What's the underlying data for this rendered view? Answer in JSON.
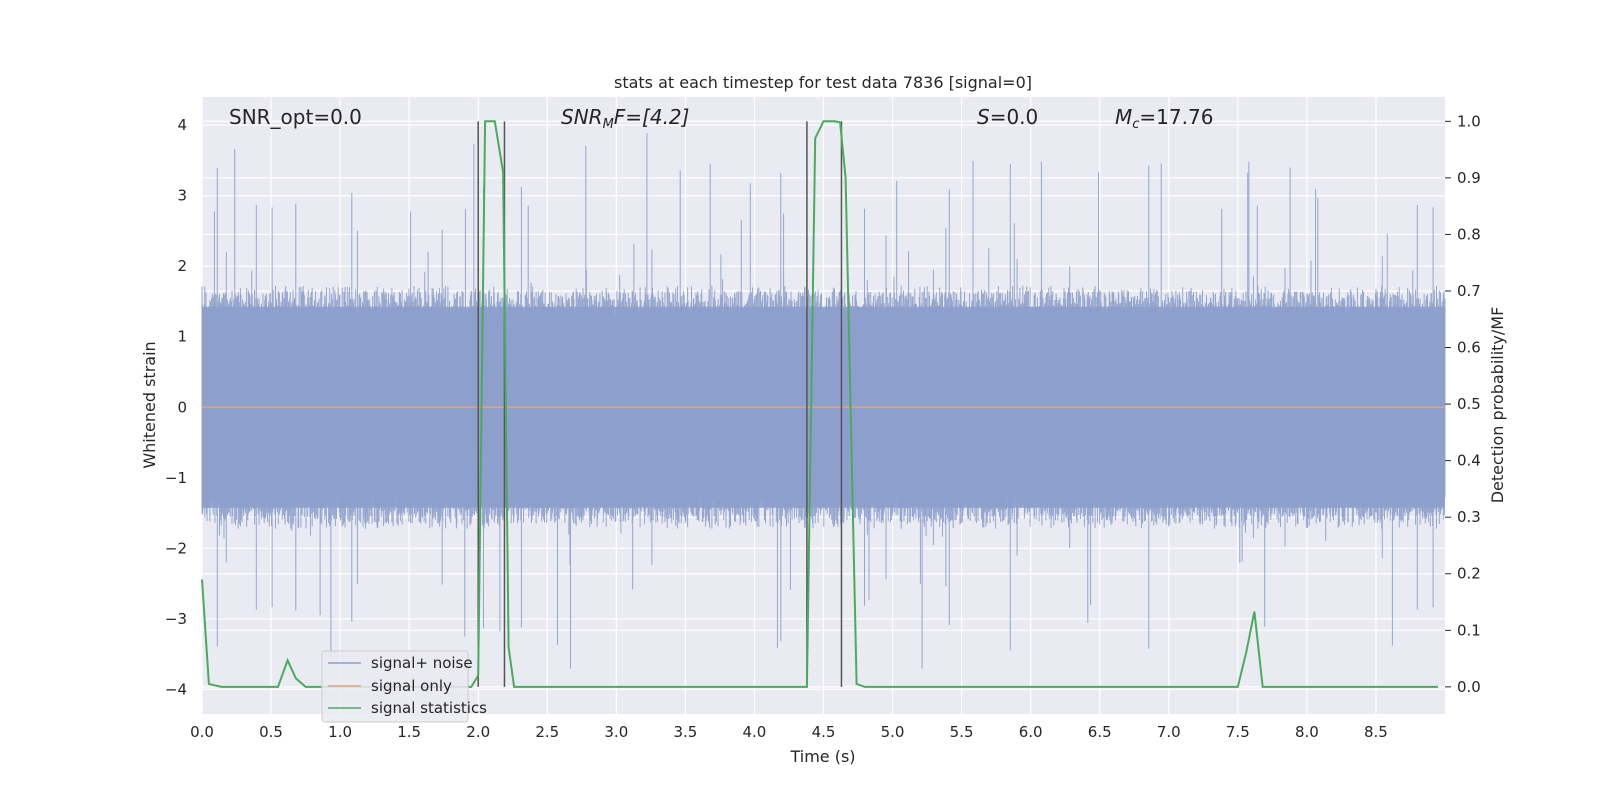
{
  "chart_data": {
    "type": "line",
    "title": "stats at each timestep for test data 7836 [signal=0]",
    "xlabel": "Time (s)",
    "ylabel": "Whitened strain",
    "ylabel_right": "Detection probability/MF",
    "xlim": [
      0.0,
      9.0
    ],
    "ylim": [
      -4.35,
      4.4
    ],
    "ylim_right": [
      -0.048,
      1.043
    ],
    "xticks": [
      0.0,
      0.5,
      1.0,
      1.5,
      2.0,
      2.5,
      3.0,
      3.5,
      4.0,
      4.5,
      5.0,
      5.5,
      6.0,
      6.5,
      7.0,
      7.5,
      8.0,
      8.5
    ],
    "xtick_labels": [
      "0.0",
      "0.5",
      "1.0",
      "1.5",
      "2.0",
      "2.5",
      "3.0",
      "3.5",
      "4.0",
      "4.5",
      "5.0",
      "5.5",
      "6.0",
      "6.5",
      "7.0",
      "7.5",
      "8.0",
      "8.5"
    ],
    "yticks": [
      4,
      3,
      2,
      1,
      0,
      -1,
      -2,
      -3,
      -4
    ],
    "ytick_labels": [
      "4",
      "3",
      "2",
      "1",
      "0",
      "−1",
      "−2",
      "−3",
      "−4"
    ],
    "yticks_right": [
      1.0,
      0.9,
      0.8,
      0.7,
      0.6,
      0.5,
      0.4,
      0.3,
      0.2,
      0.1,
      0.0
    ],
    "ytick_labels_right": [
      "1.0",
      "0.9",
      "0.8",
      "0.7",
      "0.6",
      "0.5",
      "0.4",
      "0.3",
      "0.2",
      "0.1",
      "0.0"
    ],
    "grid": true,
    "legend_placement": "lower left",
    "annotations": {
      "snr_opt": "SNR_opt=0.0",
      "snr_mf_main": "SNR",
      "snr_mf_sub": "M",
      "snr_mf_rest": "F=[4.2]",
      "s_main": "S",
      "s_rest": "=0.0",
      "mc_main": "M",
      "mc_sub": "c",
      "mc_rest": "=17.76"
    },
    "series": [
      {
        "name": "signal+ noise",
        "color": "#8c9fcb",
        "note_values": "noise-dominated whitened strain, roughly within ±1.5 with spikes to ±3.5",
        "envelope": {
          "core": 1.5,
          "peak": 3.5
        }
      },
      {
        "name": "signal only",
        "color": "#e0a27b",
        "x": [
          0.0,
          9.0
        ],
        "y": [
          0.0,
          0.0
        ]
      },
      {
        "name": "signal statistics",
        "color": "#4caa5d",
        "axis": "right",
        "x": [
          0.0,
          0.05,
          0.14,
          0.5,
          0.55,
          0.62,
          0.68,
          0.75,
          1.9,
          1.95,
          2.0,
          2.05,
          2.12,
          2.18,
          2.22,
          2.26,
          4.38,
          4.44,
          4.5,
          4.58,
          4.62,
          4.66,
          4.74,
          4.8,
          7.5,
          7.56,
          7.62,
          7.68,
          8.95
        ],
        "y": [
          0.19,
          0.005,
          0.0,
          0.0,
          0.0,
          0.047,
          0.015,
          0.0,
          0.0,
          0.0,
          0.02,
          1.0,
          1.0,
          0.91,
          0.07,
          0.0,
          0.0,
          0.97,
          1.0,
          1.0,
          0.998,
          0.9,
          0.005,
          0.0,
          0.0,
          0.06,
          0.133,
          0.0,
          0.0
        ]
      }
    ],
    "vlines": [
      2.0,
      2.19,
      4.38,
      4.63
    ],
    "colors": {
      "background": "#eaeaf2",
      "grid": "#ffffff",
      "vline": "#555555",
      "legend_face": "#eaeaf2",
      "legend_edge": "#cccccc"
    }
  }
}
